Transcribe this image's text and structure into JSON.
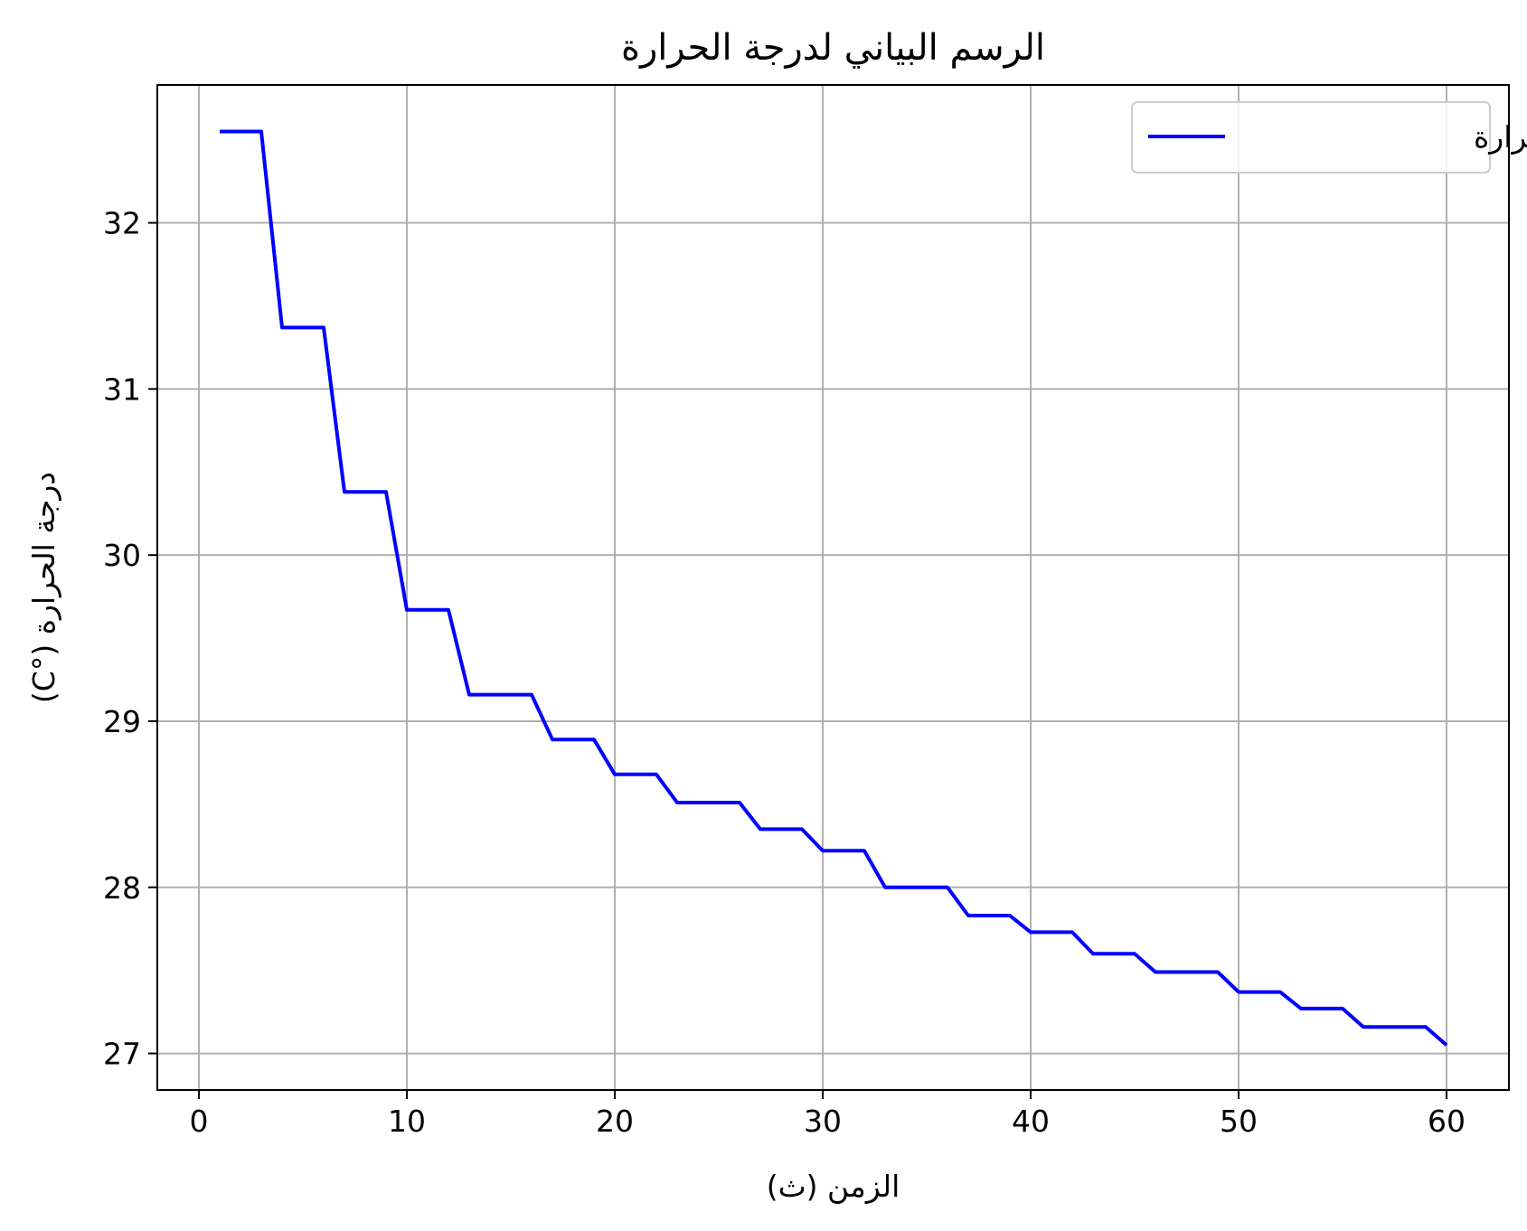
{
  "chart_data": {
    "type": "line",
    "title": "الرسم البياني لدرجة الحرارة",
    "xlabel": "الزمن (ث)",
    "ylabel": "درجة الحرارة (°C)",
    "xlim": [
      -2,
      63
    ],
    "ylim": [
      26.78,
      32.83
    ],
    "xticks": [
      0,
      10,
      20,
      30,
      40,
      50,
      60
    ],
    "yticks": [
      27,
      28,
      29,
      30,
      31,
      32
    ],
    "grid": true,
    "legend_position": "top-right",
    "series": [
      {
        "name": "درجة الحرارة",
        "color": "#0000ff",
        "x": [
          1,
          2,
          3,
          4,
          5,
          6,
          7,
          8,
          9,
          10,
          11,
          12,
          13,
          14,
          15,
          16,
          17,
          18,
          19,
          20,
          21,
          22,
          23,
          24,
          25,
          26,
          27,
          28,
          29,
          30,
          31,
          32,
          33,
          34,
          35,
          36,
          37,
          38,
          39,
          40,
          41,
          42,
          43,
          44,
          45,
          46,
          47,
          48,
          49,
          50,
          51,
          52,
          53,
          54,
          55,
          56,
          57,
          58,
          59,
          60
        ],
        "y": [
          32.55,
          32.55,
          32.55,
          31.37,
          31.37,
          31.37,
          30.38,
          30.38,
          30.38,
          29.67,
          29.67,
          29.67,
          29.16,
          29.16,
          29.16,
          29.16,
          28.89,
          28.89,
          28.89,
          28.68,
          28.68,
          28.68,
          28.51,
          28.51,
          28.51,
          28.51,
          28.35,
          28.35,
          28.35,
          28.22,
          28.22,
          28.22,
          28.0,
          28.0,
          28.0,
          28.0,
          27.83,
          27.83,
          27.83,
          27.73,
          27.73,
          27.73,
          27.6,
          27.6,
          27.6,
          27.49,
          27.49,
          27.49,
          27.49,
          27.37,
          27.37,
          27.37,
          27.27,
          27.27,
          27.27,
          27.16,
          27.16,
          27.16,
          27.16,
          27.05
        ]
      }
    ]
  }
}
